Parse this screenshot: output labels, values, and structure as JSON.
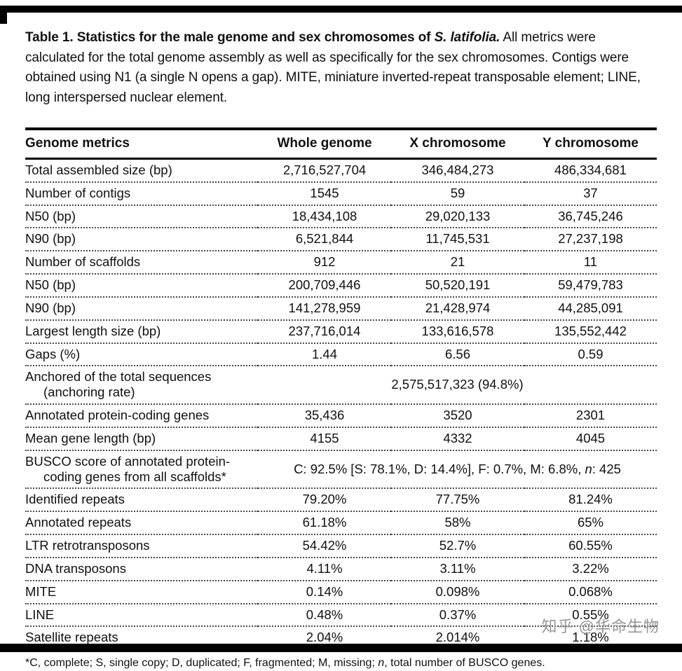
{
  "watermark": {
    "text": "知乎 @华命生物"
  },
  "caption": {
    "parts": [
      {
        "t": "Table 1. Statistics for the male genome and sex chromosomes of ",
        "b": true
      },
      {
        "t": "S. latifolia.",
        "b": true,
        "i": true
      },
      {
        "t": " All metrics were calculated for the total genome assembly as well as specifically for the sex chromosomes. Contigs were obtained using N1 (a single N opens a gap). MITE, miniature inverted-repeat transposable element; LINE, long interspersed nuclear element."
      }
    ]
  },
  "table": {
    "headers": [
      "Genome metrics",
      "Whole genome",
      "X chromosome",
      "Y chromosome"
    ],
    "rows": [
      {
        "label": [
          "Total assembled size (bp)"
        ],
        "values": [
          "2,716,527,704",
          "346,484,273",
          "486,334,681"
        ]
      },
      {
        "label": [
          "Number of contigs"
        ],
        "values": [
          "1545",
          "59",
          "37"
        ]
      },
      {
        "label": [
          "N50 (bp)"
        ],
        "values": [
          "18,434,108",
          "29,020,133",
          "36,745,246"
        ]
      },
      {
        "label": [
          "N90 (bp)"
        ],
        "values": [
          "6,521,844",
          "11,745,531",
          "27,237,198"
        ]
      },
      {
        "label": [
          "Number of scaffolds"
        ],
        "values": [
          "912",
          "21",
          "11"
        ]
      },
      {
        "label": [
          "N50 (bp)"
        ],
        "values": [
          "200,709,446",
          "50,520,191",
          "59,479,783"
        ]
      },
      {
        "label": [
          "N90 (bp)"
        ],
        "values": [
          "141,278,959",
          "21,428,974",
          "44,285,091"
        ]
      },
      {
        "label": [
          "Largest length size (bp)"
        ],
        "values": [
          "237,716,014",
          "133,616,578",
          "135,552,442"
        ]
      },
      {
        "label": [
          "Gaps (%)"
        ],
        "values": [
          "1.44",
          "6.56",
          "0.59"
        ]
      },
      {
        "label": [
          "Anchored of the total sequences",
          "(anchoring rate)"
        ],
        "span": [
          {
            "t": "2,575,517,323 (94.8%)"
          }
        ]
      },
      {
        "label": [
          "Annotated protein-coding genes"
        ],
        "values": [
          "35,436",
          "3520",
          "2301"
        ]
      },
      {
        "label": [
          "Mean gene length (bp)"
        ],
        "values": [
          "4155",
          "4332",
          "4045"
        ]
      },
      {
        "label": [
          "BUSCO score of annotated protein-",
          "coding genes from all scaffolds*"
        ],
        "span": [
          {
            "t": "C: 92.5% [S: 78.1%, D: 14.4%], F: 0.7%, M: 6.8%, "
          },
          {
            "t": "n",
            "i": true
          },
          {
            "t": ": 425"
          }
        ]
      },
      {
        "label": [
          "Identified repeats"
        ],
        "values": [
          "79.20%",
          "77.75%",
          "81.24%"
        ]
      },
      {
        "label": [
          "Annotated repeats"
        ],
        "values": [
          "61.18%",
          "58%",
          "65%"
        ]
      },
      {
        "label": [
          "LTR retrotransposons"
        ],
        "values": [
          "54.42%",
          "52.7%",
          "60.55%"
        ]
      },
      {
        "label": [
          "DNA transposons"
        ],
        "values": [
          "4.11%",
          "3.11%",
          "3.22%"
        ]
      },
      {
        "label": [
          "MITE"
        ],
        "values": [
          "0.14%",
          "0.098%",
          "0.068%"
        ]
      },
      {
        "label": [
          "LINE"
        ],
        "values": [
          "0.48%",
          "0.37%",
          "0.55%"
        ]
      },
      {
        "label": [
          "Satellite repeats"
        ],
        "values": [
          "2.04%",
          "2.014%",
          "1.18%"
        ]
      }
    ],
    "footnote_parts": [
      {
        "t": "*C, complete; S, single copy; D, duplicated; F, fragmented; M, missing; "
      },
      {
        "t": "n",
        "i": true
      },
      {
        "t": ", total number of BUSCO genes."
      }
    ]
  }
}
